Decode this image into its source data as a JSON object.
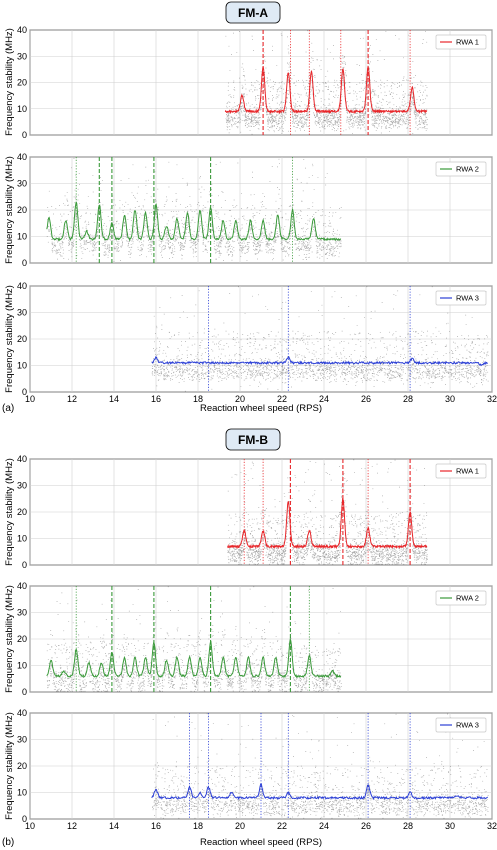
{
  "figure": {
    "groups": [
      {
        "title": "FM-A",
        "sublabel": "(a)",
        "xlabel": "Reaction wheel speed (RPS)"
      },
      {
        "title": "FM-B",
        "sublabel": "(b)",
        "xlabel": "Reaction wheel speed (RPS)"
      }
    ]
  },
  "chart_data": [
    {
      "type": "scatter",
      "group": "FM-A",
      "xlim": [
        10,
        32
      ],
      "ylim": [
        0,
        40
      ],
      "xticks": [
        10,
        12,
        14,
        16,
        18,
        20,
        22,
        24,
        26,
        28,
        30,
        32
      ],
      "yticks": [
        0,
        10,
        20,
        30,
        40
      ],
      "ylabel": "Frequency stability (MHz)",
      "grid": true,
      "legend_position": "top-right",
      "series": [
        {
          "name": "RWA 1",
          "color": "#e8262a",
          "x_range": [
            19.3,
            28.9
          ]
        }
      ],
      "baseline": 9,
      "peaks": [
        [
          20.1,
          15
        ],
        [
          21.1,
          26
        ],
        [
          22.3,
          24
        ],
        [
          23.4,
          24
        ],
        [
          24.9,
          25
        ],
        [
          26.1,
          26
        ],
        [
          28.2,
          18
        ]
      ],
      "markers": [
        {
          "x": 21.1,
          "style": "dashed"
        },
        {
          "x": 22.4,
          "style": "dotted"
        },
        {
          "x": 23.3,
          "style": "dotted"
        },
        {
          "x": 24.8,
          "style": "dotted"
        },
        {
          "x": 26.1,
          "style": "dashed"
        },
        {
          "x": 28.1,
          "style": "dotted"
        }
      ]
    },
    {
      "type": "scatter",
      "group": "FM-A",
      "xlim": [
        10,
        32
      ],
      "ylim": [
        0,
        40
      ],
      "xticks": [
        10,
        12,
        14,
        16,
        18,
        20,
        22,
        24,
        26,
        28,
        30,
        32
      ],
      "yticks": [
        0,
        10,
        20,
        30,
        40
      ],
      "ylabel": "Frequency stability (MHz)",
      "grid": true,
      "legend_position": "top-right",
      "series": [
        {
          "name": "RWA 2",
          "color": "#3a9a3a",
          "x_range": [
            10.8,
            24.8
          ]
        }
      ],
      "baseline": 9,
      "peaks": [
        [
          10.9,
          17
        ],
        [
          11.7,
          16
        ],
        [
          12.2,
          23
        ],
        [
          12.7,
          12
        ],
        [
          13.3,
          22
        ],
        [
          13.9,
          15
        ],
        [
          14.5,
          18
        ],
        [
          15.0,
          20
        ],
        [
          15.5,
          19
        ],
        [
          16.0,
          22
        ],
        [
          16.5,
          14
        ],
        [
          17.0,
          17
        ],
        [
          17.5,
          19
        ],
        [
          18.1,
          20
        ],
        [
          18.6,
          21
        ],
        [
          19.2,
          16
        ],
        [
          19.8,
          16
        ],
        [
          20.5,
          16
        ],
        [
          21.1,
          16
        ],
        [
          21.8,
          18
        ],
        [
          22.5,
          20
        ],
        [
          23.5,
          17
        ],
        [
          24.4,
          9
        ]
      ],
      "markers": [
        {
          "x": 12.2,
          "style": "dotted"
        },
        {
          "x": 13.3,
          "style": "dashed"
        },
        {
          "x": 13.9,
          "style": "dashed"
        },
        {
          "x": 15.9,
          "style": "dashed"
        },
        {
          "x": 18.6,
          "style": "dashed"
        },
        {
          "x": 22.5,
          "style": "dotted"
        }
      ]
    },
    {
      "type": "scatter",
      "group": "FM-A",
      "xlim": [
        10,
        32
      ],
      "ylim": [
        0,
        40
      ],
      "xticks": [
        10,
        12,
        14,
        16,
        18,
        20,
        22,
        24,
        26,
        28,
        30,
        32
      ],
      "yticks": [
        0,
        10,
        20,
        30,
        40
      ],
      "ylabel": "Frequency stability (MHz)",
      "grid": true,
      "legend_position": "top-right",
      "series": [
        {
          "name": "RWA 3",
          "color": "#2b3fd6",
          "x_range": [
            15.8,
            31.8
          ]
        }
      ],
      "baseline": 11,
      "peaks": [
        [
          16.0,
          13
        ],
        [
          22.3,
          13
        ],
        [
          28.2,
          12.5
        ],
        [
          30.8,
          11
        ],
        [
          31.5,
          10
        ]
      ],
      "markers": [
        {
          "x": 18.5,
          "style": "dotted"
        },
        {
          "x": 22.3,
          "style": "dotted"
        },
        {
          "x": 28.1,
          "style": "dotted"
        }
      ]
    },
    {
      "type": "scatter",
      "group": "FM-B",
      "xlim": [
        10,
        32
      ],
      "ylim": [
        0,
        40
      ],
      "xticks": [
        10,
        12,
        14,
        16,
        18,
        20,
        22,
        24,
        26,
        28,
        30,
        32
      ],
      "yticks": [
        0,
        10,
        20,
        30,
        40
      ],
      "ylabel": "Frequency stability (MHz)",
      "grid": true,
      "legend_position": "top-right",
      "series": [
        {
          "name": "RWA 1",
          "color": "#e8262a",
          "x_range": [
            19.4,
            28.9
          ]
        }
      ],
      "baseline": 7,
      "peaks": [
        [
          20.2,
          13
        ],
        [
          21.1,
          13
        ],
        [
          22.3,
          24
        ],
        [
          23.3,
          13
        ],
        [
          24.9,
          25
        ],
        [
          26.1,
          14
        ],
        [
          28.1,
          20
        ]
      ],
      "markers": [
        {
          "x": 20.2,
          "style": "dotted"
        },
        {
          "x": 21.1,
          "style": "dotted"
        },
        {
          "x": 22.4,
          "style": "dashed"
        },
        {
          "x": 24.9,
          "style": "dashed"
        },
        {
          "x": 26.1,
          "style": "dotted"
        },
        {
          "x": 28.1,
          "style": "dashed"
        }
      ]
    },
    {
      "type": "scatter",
      "group": "FM-B",
      "xlim": [
        10,
        32
      ],
      "ylim": [
        0,
        40
      ],
      "xticks": [
        10,
        12,
        14,
        16,
        18,
        20,
        22,
        24,
        26,
        28,
        30,
        32
      ],
      "yticks": [
        0,
        10,
        20,
        30,
        40
      ],
      "ylabel": "Frequency stability (MHz)",
      "grid": true,
      "legend_position": "top-right",
      "series": [
        {
          "name": "RWA 2",
          "color": "#3a9a3a",
          "x_range": [
            10.8,
            24.8
          ]
        }
      ],
      "baseline": 6,
      "peaks": [
        [
          11.0,
          12
        ],
        [
          11.6,
          8
        ],
        [
          12.2,
          16
        ],
        [
          12.8,
          11
        ],
        [
          13.4,
          11
        ],
        [
          13.9,
          15
        ],
        [
          14.5,
          13
        ],
        [
          15.0,
          13
        ],
        [
          15.5,
          13
        ],
        [
          15.9,
          19
        ],
        [
          16.5,
          12
        ],
        [
          17.0,
          13
        ],
        [
          17.6,
          13
        ],
        [
          18.1,
          13
        ],
        [
          18.6,
          19
        ],
        [
          19.2,
          13
        ],
        [
          19.8,
          13
        ],
        [
          20.4,
          13
        ],
        [
          21.1,
          13
        ],
        [
          21.7,
          13
        ],
        [
          22.4,
          20
        ],
        [
          23.3,
          14
        ],
        [
          24.4,
          8
        ]
      ],
      "markers": [
        {
          "x": 12.2,
          "style": "dotted"
        },
        {
          "x": 13.9,
          "style": "dashed"
        },
        {
          "x": 15.9,
          "style": "dashed"
        },
        {
          "x": 18.6,
          "style": "dashed"
        },
        {
          "x": 22.4,
          "style": "dashed"
        },
        {
          "x": 23.3,
          "style": "dotted"
        }
      ]
    },
    {
      "type": "scatter",
      "group": "FM-B",
      "xlim": [
        10,
        32
      ],
      "ylim": [
        0,
        40
      ],
      "xticks": [
        10,
        12,
        14,
        16,
        18,
        20,
        22,
        24,
        26,
        28,
        30,
        32
      ],
      "yticks": [
        0,
        10,
        20,
        30,
        40
      ],
      "ylabel": "Frequency stability (MHz)",
      "grid": true,
      "legend_position": "top-right",
      "series": [
        {
          "name": "RWA 3",
          "color": "#2b3fd6",
          "x_range": [
            15.8,
            31.8
          ]
        }
      ],
      "baseline": 8,
      "peaks": [
        [
          16.0,
          11
        ],
        [
          17.6,
          12
        ],
        [
          18.1,
          10
        ],
        [
          18.5,
          12
        ],
        [
          19.6,
          10
        ],
        [
          21.0,
          13
        ],
        [
          22.3,
          10
        ],
        [
          26.1,
          13
        ],
        [
          28.1,
          10
        ],
        [
          30.3,
          9
        ]
      ],
      "markers": [
        {
          "x": 17.6,
          "style": "dotted"
        },
        {
          "x": 18.5,
          "style": "dotted"
        },
        {
          "x": 21.0,
          "style": "dotted"
        },
        {
          "x": 22.3,
          "style": "dotted"
        },
        {
          "x": 26.1,
          "style": "dotted"
        },
        {
          "x": 28.1,
          "style": "dotted"
        }
      ]
    }
  ]
}
